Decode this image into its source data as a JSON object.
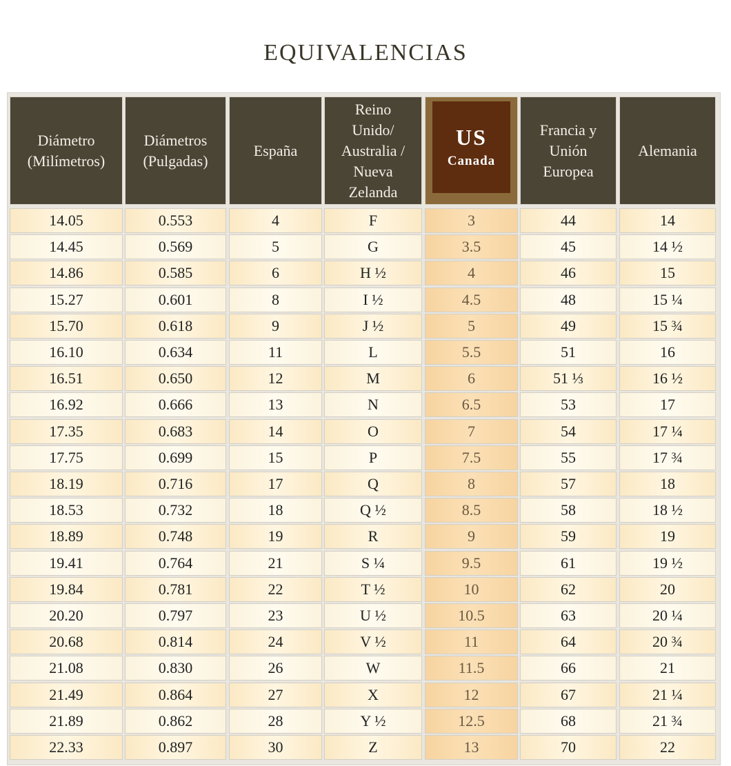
{
  "title": "EQUIVALENCIAS",
  "headers": [
    "Diámetro\n(Milímetros)",
    "Diámetros\n(Pulgadas)",
    "España",
    "Reino\nUnido/\nAustralia /\nNueva\nZelanda",
    {
      "main": "US",
      "sub": "Canada"
    },
    "Francia y\nUnión\nEuropea",
    "Alemania"
  ],
  "highlight_color": "#5e2d10",
  "rows": [
    [
      "14.05",
      "0.553",
      "4",
      "F",
      "3",
      "44",
      "14"
    ],
    [
      "14.45",
      "0.569",
      "5",
      "G",
      "3.5",
      "45",
      "14 ½"
    ],
    [
      "14.86",
      "0.585",
      "6",
      "H ½",
      "4",
      "46",
      "15"
    ],
    [
      "15.27",
      "0.601",
      "8",
      "I ½",
      "4.5",
      "48",
      "15 ¼"
    ],
    [
      "15.70",
      "0.618",
      "9",
      "J ½",
      "5",
      "49",
      "15 ¾"
    ],
    [
      "16.10",
      "0.634",
      "11",
      "L",
      "5.5",
      "51",
      "16"
    ],
    [
      "16.51",
      "0.650",
      "12",
      "M",
      "6",
      "51 ⅓",
      "16 ½"
    ],
    [
      "16.92",
      "0.666",
      "13",
      "N",
      "6.5",
      "53",
      "17"
    ],
    [
      "17.35",
      "0.683",
      "14",
      "O",
      "7",
      "54",
      "17 ¼"
    ],
    [
      "17.75",
      "0.699",
      "15",
      "P",
      "7.5",
      "55",
      "17 ¾"
    ],
    [
      "18.19",
      "0.716",
      "17",
      "Q",
      "8",
      "57",
      "18"
    ],
    [
      "18.53",
      "0.732",
      "18",
      "Q ½",
      "8.5",
      "58",
      "18 ½"
    ],
    [
      "18.89",
      "0.748",
      "19",
      "R",
      "9",
      "59",
      "19"
    ],
    [
      "19.41",
      "0.764",
      "21",
      "S ¼",
      "9.5",
      "61",
      "19 ½"
    ],
    [
      "19.84",
      "0.781",
      "22",
      "T ½",
      "10",
      "62",
      "20"
    ],
    [
      "20.20",
      "0.797",
      "23",
      "U ½",
      "10.5",
      "63",
      "20 ¼"
    ],
    [
      "20.68",
      "0.814",
      "24",
      "V ½",
      "11",
      "64",
      "20 ¾"
    ],
    [
      "21.08",
      "0.830",
      "26",
      "W",
      "11.5",
      "66",
      "21"
    ],
    [
      "21.49",
      "0.864",
      "27",
      "X",
      "12",
      "67",
      "21 ¼"
    ],
    [
      "21.89",
      "0.862",
      "28",
      "Y ½",
      "12.5",
      "68",
      "21 ¾"
    ],
    [
      "22.33",
      "0.897",
      "30",
      "Z",
      "13",
      "70",
      "22"
    ]
  ]
}
